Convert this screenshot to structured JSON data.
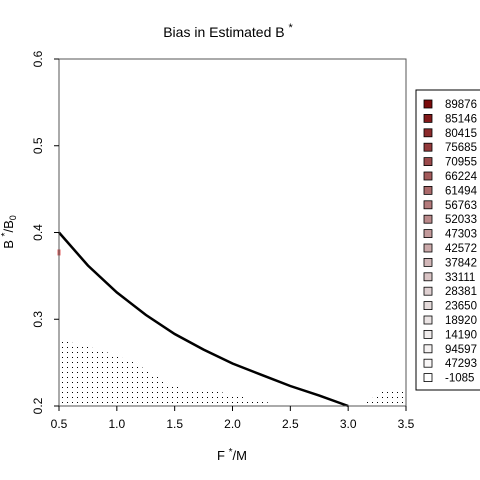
{
  "chart_data": {
    "type": "heatmap",
    "title": "Bias in Estimated B",
    "title_superscript": "*",
    "xlabel": "F",
    "xlabel_superscript": "*",
    "xlabel_suffix": "/M",
    "ylabel": "B",
    "ylabel_superscript": "*",
    "ylabel_suffix": "/B",
    "ylabel_subscript": "0",
    "xlim": [
      0.5,
      3.5
    ],
    "ylim": [
      0.2,
      0.6
    ],
    "x_ticks": [
      "0.5",
      "1.0",
      "1.5",
      "2.0",
      "2.5",
      "3.0",
      "3.5"
    ],
    "y_ticks": [
      "0.2",
      "0.3",
      "0.4",
      "0.5",
      "0.6"
    ],
    "grid": false,
    "legend_position": "right",
    "legend": [
      {
        "label": "89876",
        "color": "#7a0a0a"
      },
      {
        "label": "85146",
        "color": "#82191a"
      },
      {
        "label": "80415",
        "color": "#8b2a2b"
      },
      {
        "label": "75685",
        "color": "#933a3b"
      },
      {
        "label": "70955",
        "color": "#9b4a4b"
      },
      {
        "label": "66224",
        "color": "#a35a5b"
      },
      {
        "label": "61494",
        "color": "#ab6a6b"
      },
      {
        "label": "56763",
        "color": "#b37a7b"
      },
      {
        "label": "52033",
        "color": "#bb8a8b"
      },
      {
        "label": "47303",
        "color": "#c39a9b"
      },
      {
        "label": "42572",
        "color": "#cba9aa"
      },
      {
        "label": "37842",
        "color": "#d2b7b8"
      },
      {
        "label": "33111",
        "color": "#d9c4c5"
      },
      {
        "label": "28381",
        "color": "#dfd0d1"
      },
      {
        "label": "23650",
        "color": "#e5dbdb"
      },
      {
        "label": "18920",
        "color": "#ebe4e4"
      },
      {
        "label": "14190",
        "color": "#f0ecec"
      },
      {
        "label": "94597",
        "color": "#f5f2f2"
      },
      {
        "label": "47293",
        "color": "#f9f7f7"
      },
      {
        "label": "-1085",
        "color": "#ffffff"
      }
    ],
    "curve": {
      "name": "",
      "color": "#000000",
      "x": [
        0.5,
        0.75,
        1.0,
        1.25,
        1.5,
        1.75,
        2.0,
        2.25,
        2.5,
        2.75,
        3.0
      ],
      "y": [
        0.4,
        0.362,
        0.331,
        0.305,
        0.283,
        0.265,
        0.249,
        0.236,
        0.223,
        0.212,
        0.2
      ]
    },
    "dot_regions": [
      {
        "x": [
          0.5,
          0.5,
          0.55,
          0.7,
          0.85,
          1.0,
          1.15,
          1.3,
          1.45,
          1.6,
          1.8,
          2.0,
          2.2,
          2.35,
          2.35
        ],
        "y": [
          0.2,
          0.28,
          0.275,
          0.27,
          0.265,
          0.258,
          0.25,
          0.238,
          0.225,
          0.219,
          0.219,
          0.213,
          0.207,
          0.203,
          0.2
        ]
      },
      {
        "x": [
          3.1,
          3.2,
          3.3,
          3.5,
          3.5
        ],
        "y": [
          0.2,
          0.208,
          0.22,
          0.22,
          0.2
        ]
      }
    ],
    "marker": {
      "x": 0.5,
      "y": 0.377,
      "color": "#e06060"
    }
  }
}
